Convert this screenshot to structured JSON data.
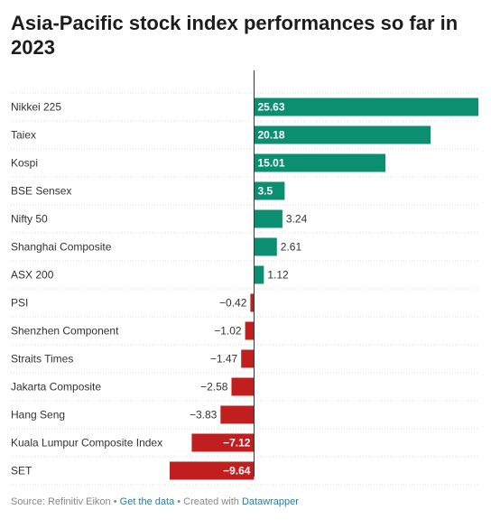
{
  "title": "Asia-Pacific stock index performances so far in 2023",
  "footer": {
    "source": "Source: Refinitiv Eikon",
    "sep1": " • ",
    "get_data": "Get the data",
    "sep2": " • Created with ",
    "tool": "Datawrapper"
  },
  "colors": {
    "positive": "#0b8f70",
    "negative": "#c11f1f",
    "text": "#333333",
    "grid": "#dddddd"
  },
  "chart_data": {
    "type": "bar",
    "orientation": "horizontal",
    "categories": [
      "Nikkei 225",
      "Taiex",
      "Kospi",
      "BSE Sensex",
      "Nifty 50",
      "Shanghai Composite",
      "ASX 200",
      "PSI",
      "Shenzhen Component",
      "Straits Times",
      "Jakarta Composite",
      "Hang Seng",
      "Kuala Lumpur Composite Index",
      "SET"
    ],
    "values": [
      25.63,
      20.18,
      15.01,
      3.5,
      3.24,
      2.61,
      1.12,
      -0.42,
      -1.02,
      -1.47,
      -2.58,
      -3.83,
      -7.12,
      -9.64
    ],
    "value_labels": [
      "25.63",
      "20.18",
      "15.01",
      "3.5",
      "3.24",
      "2.61",
      "1.12",
      "−0.42",
      "−1.02",
      "−1.47",
      "−2.58",
      "−3.83",
      "−7.12",
      "−9.64"
    ],
    "xlim": [
      -9.64,
      25.63
    ],
    "grid": false
  }
}
